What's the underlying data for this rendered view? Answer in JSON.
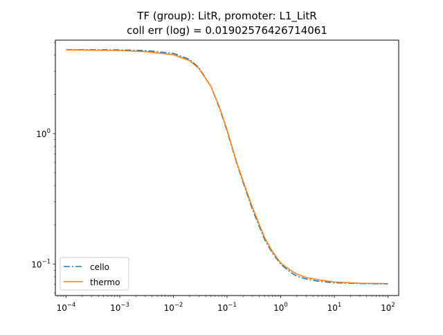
{
  "chart_data": {
    "type": "line",
    "title": "TF (group): LitR, promoter: L1_LitR",
    "subtitle": "coll err (log) = 0.01902576426714061",
    "xlabel": "",
    "ylabel": "",
    "xscale": "log",
    "yscale": "log",
    "xlim": [
      6.31e-05,
      158.5
    ],
    "ylim": [
      0.0575,
      5.2
    ],
    "grid": false,
    "legend_position": "lower-left",
    "x_ticks": [
      {
        "value": 0.0001,
        "base": "10",
        "exp": "−4"
      },
      {
        "value": 0.001,
        "base": "10",
        "exp": "−3"
      },
      {
        "value": 0.01,
        "base": "10",
        "exp": "−2"
      },
      {
        "value": 0.1,
        "base": "10",
        "exp": "−1"
      },
      {
        "value": 1,
        "base": "10",
        "exp": "0"
      },
      {
        "value": 10,
        "base": "10",
        "exp": "1"
      },
      {
        "value": 100,
        "base": "10",
        "exp": "2"
      }
    ],
    "y_ticks": [
      {
        "value": 0.1,
        "base": "10",
        "exp": "−1"
      },
      {
        "value": 1,
        "base": "10",
        "exp": "0"
      }
    ],
    "series": [
      {
        "name": "cello",
        "color": "#1f77b4",
        "style": "dashdot",
        "points": [
          [
            0.0001,
            4.4
          ],
          [
            0.001,
            4.38
          ],
          [
            0.003,
            4.33
          ],
          [
            0.01,
            4.12
          ],
          [
            0.02,
            3.7
          ],
          [
            0.03,
            3.2
          ],
          [
            0.05,
            2.3
          ],
          [
            0.07,
            1.62
          ],
          [
            0.1,
            1.05
          ],
          [
            0.15,
            0.6
          ],
          [
            0.2,
            0.42
          ],
          [
            0.3,
            0.26
          ],
          [
            0.5,
            0.155
          ],
          [
            0.7,
            0.122
          ],
          [
            1,
            0.1
          ],
          [
            1.5,
            0.087
          ],
          [
            2,
            0.081
          ],
          [
            3,
            0.077
          ],
          [
            5,
            0.074
          ],
          [
            10,
            0.072
          ],
          [
            30,
            0.071
          ],
          [
            100,
            0.0705
          ]
        ]
      },
      {
        "name": "thermo",
        "color": "#ff7f0e",
        "style": "solid",
        "points": [
          [
            0.0001,
            4.38
          ],
          [
            0.001,
            4.33
          ],
          [
            0.003,
            4.25
          ],
          [
            0.01,
            4.02
          ],
          [
            0.02,
            3.62
          ],
          [
            0.03,
            3.15
          ],
          [
            0.05,
            2.3
          ],
          [
            0.07,
            1.65
          ],
          [
            0.1,
            1.07
          ],
          [
            0.15,
            0.61
          ],
          [
            0.2,
            0.43
          ],
          [
            0.3,
            0.27
          ],
          [
            0.5,
            0.16
          ],
          [
            0.7,
            0.125
          ],
          [
            1,
            0.102
          ],
          [
            1.5,
            0.09
          ],
          [
            2,
            0.084
          ],
          [
            3,
            0.079
          ],
          [
            5,
            0.076
          ],
          [
            10,
            0.073
          ],
          [
            30,
            0.0715
          ],
          [
            100,
            0.071
          ]
        ]
      }
    ]
  }
}
